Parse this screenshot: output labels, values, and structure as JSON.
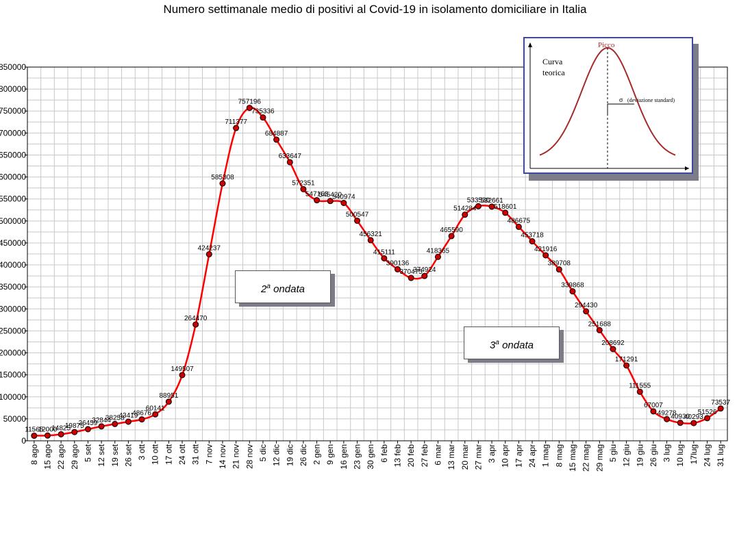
{
  "chart_data": {
    "type": "line",
    "title": "Numero settimanale medio di positivi al Covid-19  in isolamento domiciliare in Italia",
    "ylim": [
      0,
      850000
    ],
    "y_ticks": [
      "0",
      "50000",
      "100000",
      "150000",
      "200000",
      "250000",
      "300000",
      "350000",
      "400000",
      "450000",
      "500000",
      "550000",
      "600000",
      "650000",
      "700000",
      "750000",
      "800000",
      "850000"
    ],
    "grid": true,
    "series_color": "#ff0000",
    "marker_color": "#cc0000",
    "categories": [
      "8 ago",
      "15 ago",
      "22 ago",
      "29 ago",
      "5 set",
      "12 set",
      "19 set",
      "26 set",
      "3 ott",
      "10 ott",
      "17 ott",
      "24 ott",
      "31 ott",
      "7 nov",
      "14 nov",
      "21 nov",
      "28 nov",
      "5 dic",
      "12 dic",
      "19 dic",
      "26 dic",
      "2 gen",
      "9 gen",
      "16 gen",
      "23 gen",
      "30 gen",
      "6 feb",
      "13 feb",
      "20 feb",
      "27 feb",
      "6 mar",
      "13 mar",
      "20 mar",
      "27 mar",
      "3 apr",
      "10 apr",
      "17 apr",
      "24 apr",
      "1 mag",
      "8 mag",
      "15 mag",
      "22 mag",
      "29 mag",
      "5 giu",
      "12 giu",
      "19 giu",
      "26 giu",
      "3 lug",
      "10 lug",
      "17lug",
      "24 lug",
      "31 lug"
    ],
    "values": [
      11565,
      12000,
      14825,
      19875,
      26459,
      32844,
      38258,
      43419,
      48676,
      60141,
      88951,
      149507,
      264470,
      424237,
      585308,
      711377,
      757196,
      735336,
      684887,
      633647,
      572351,
      547163,
      545420,
      540974,
      500547,
      456321,
      415111,
      390136,
      370475,
      374924,
      418365,
      465590,
      514284,
      533530,
      532661,
      518601,
      486675,
      453718,
      421916,
      389708,
      339868,
      294430,
      251688,
      208692,
      171291,
      111555,
      67007,
      49278,
      40930,
      40293,
      51526,
      73537
    ],
    "data_labels": [
      "11565",
      "12000",
      "14825",
      "19875",
      "26459",
      "32844",
      "38258",
      "43419",
      "48676",
      "60141",
      "88951",
      "149507",
      "264470",
      "424237",
      "585308",
      "711377",
      "757196",
      "735336",
      "684887",
      "633647",
      "572351",
      "547163",
      "545420",
      "540974",
      "500547",
      "456321",
      "415111",
      "390136",
      "370475",
      "374924",
      "418365",
      "465590",
      "514284",
      "533530",
      "532661",
      "518601",
      "486675",
      "453718",
      "421916",
      "389708",
      "339868",
      "294430",
      "251688",
      "208692",
      "171291",
      "111555",
      "67007",
      "49278",
      "40930",
      "40293",
      "51526",
      "73537"
    ],
    "annotations": {
      "wave2_label": "ondata",
      "wave2_num": "2",
      "wave2_sup": "a",
      "wave3_label": "ondata",
      "wave3_num": "3",
      "wave3_sup": "a"
    },
    "inset": {
      "curve_label_1": "Curva",
      "curve_label_2": "teorica",
      "peak_label": "Picco",
      "sigma_symbol": "σ",
      "sigma_label": "(deviazione standard)",
      "curve_color": "#a52a2a"
    }
  }
}
